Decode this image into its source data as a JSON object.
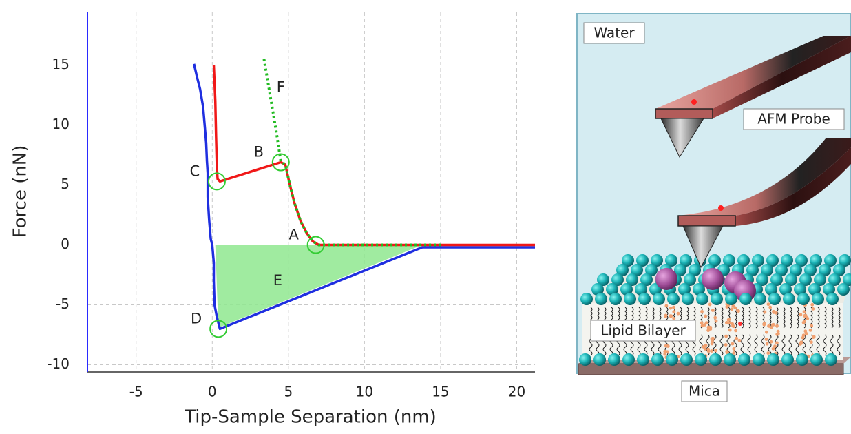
{
  "chart_data": {
    "type": "line",
    "xlabel": "Tip-Sample Separation (nm)",
    "ylabel": "Force (nN)",
    "xlim": [
      -8.2,
      21.2
    ],
    "ylim": [
      -10.6,
      19.4
    ],
    "xticks": [
      -5,
      0,
      5,
      10,
      15,
      20
    ],
    "yticks": [
      -10,
      -5,
      0,
      5,
      10,
      15
    ],
    "grid": true,
    "series": [
      {
        "style": "fill",
        "color": "#8fe88f",
        "x": [
          0.2,
          13.8,
          0.4
        ],
        "values": [
          0.0,
          0.0,
          -6.9
        ]
      },
      {
        "style": "solid",
        "color": "#1f2fe0",
        "x": [
          -1.2,
          -1.0,
          -0.8,
          -0.6,
          -0.5,
          -0.4,
          -0.35,
          -0.3,
          -0.3,
          -0.2,
          -0.1,
          0.0,
          0.1,
          0.1,
          0.15,
          0.3,
          0.5,
          13.8,
          21.2
        ],
        "values": [
          15.1,
          14.0,
          13.0,
          11.5,
          10.0,
          8.5,
          7.0,
          6.0,
          4.0,
          2.0,
          0.5,
          0.0,
          -1.5,
          -3.0,
          -5.0,
          -6.0,
          -7.0,
          -0.2,
          -0.2
        ]
      },
      {
        "style": "solid",
        "color": "#f01818",
        "x": [
          0.1,
          0.2,
          0.25,
          0.3,
          0.35,
          0.5,
          2.0,
          4.5,
          4.8,
          5.1,
          5.4,
          5.8,
          6.2,
          6.6,
          7.0,
          15.0,
          21.2
        ],
        "values": [
          15.0,
          12.0,
          9.0,
          6.5,
          5.5,
          5.3,
          5.9,
          6.9,
          6.7,
          5.0,
          3.5,
          2.0,
          1.0,
          0.3,
          0.0,
          0.0,
          0.0
        ]
      },
      {
        "style": "dotted",
        "color": "#22bb22",
        "x": [
          3.4,
          3.8,
          4.2,
          4.5,
          4.8,
          5.1,
          5.4,
          5.8,
          6.2,
          6.6,
          7.0,
          15.0
        ],
        "values": [
          15.5,
          12.5,
          9.5,
          7.0,
          6.7,
          5.0,
          3.5,
          2.0,
          1.0,
          0.3,
          0.0,
          0.0
        ]
      }
    ],
    "annotations": [
      {
        "text": "A",
        "x": 6.8,
        "y": 0.0,
        "circle": true
      },
      {
        "text": "B",
        "x": 4.5,
        "y": 6.9,
        "circle": true
      },
      {
        "text": "C",
        "x": 0.3,
        "y": 5.3,
        "circle": true
      },
      {
        "text": "D",
        "x": 0.4,
        "y": -7.0,
        "circle": true
      },
      {
        "text": "E",
        "x": 4.3,
        "y": -3.0,
        "circle": false
      },
      {
        "text": "F",
        "x": 4.5,
        "y": 13.1,
        "circle": false
      }
    ]
  },
  "diagram": {
    "water": "Water",
    "probe": "AFM Probe",
    "bilayer": "Lipid Bilayer",
    "substrate": "Mica"
  }
}
